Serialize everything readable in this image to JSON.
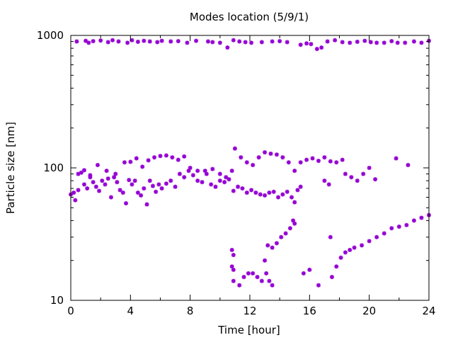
{
  "chart_data": {
    "type": "scatter",
    "title": "Modes location (5/9/1)",
    "xlabel": "Time [hour]",
    "ylabel": "Particle size [nm]",
    "xlim": [
      0,
      24
    ],
    "ylim": [
      10,
      1000
    ],
    "yscale": "log",
    "xticks": [
      0,
      4,
      8,
      12,
      16,
      20,
      24
    ],
    "xtick_labels": [
      "0",
      "4",
      "8",
      "12",
      "16",
      "20",
      "24"
    ],
    "yticks": [
      10,
      100,
      1000
    ],
    "ytick_labels": [
      "10",
      "100",
      "1000"
    ],
    "grid": false,
    "legend": "none",
    "marker_color": "#9400d3",
    "series": [
      {
        "values": [
          [
            0.4,
            900
          ],
          [
            1.0,
            910
          ],
          [
            1.2,
            880
          ],
          [
            1.5,
            905
          ],
          [
            2.0,
            915
          ],
          [
            2.5,
            890
          ],
          [
            2.8,
            920
          ],
          [
            3.2,
            900
          ],
          [
            3.8,
            880
          ],
          [
            4.1,
            920
          ],
          [
            4.5,
            895
          ],
          [
            4.9,
            910
          ],
          [
            5.3,
            900
          ],
          [
            5.8,
            890
          ],
          [
            6.1,
            910
          ],
          [
            6.7,
            900
          ],
          [
            7.2,
            905
          ],
          [
            7.8,
            880
          ],
          [
            8.4,
            910
          ],
          [
            9.2,
            900
          ],
          [
            9.5,
            890
          ],
          [
            10.0,
            880
          ],
          [
            10.5,
            810
          ],
          [
            10.9,
            920
          ],
          [
            11.3,
            900
          ],
          [
            11.7,
            890
          ],
          [
            12.1,
            880
          ],
          [
            12.8,
            890
          ],
          [
            13.5,
            900
          ],
          [
            14.0,
            905
          ],
          [
            14.5,
            890
          ],
          [
            15.4,
            850
          ],
          [
            15.8,
            870
          ],
          [
            16.1,
            860
          ],
          [
            16.5,
            790
          ],
          [
            16.8,
            810
          ],
          [
            17.2,
            900
          ],
          [
            17.7,
            920
          ],
          [
            18.2,
            890
          ],
          [
            18.7,
            880
          ],
          [
            19.2,
            895
          ],
          [
            19.7,
            910
          ],
          [
            20.1,
            890
          ],
          [
            20.5,
            880
          ],
          [
            21.0,
            880
          ],
          [
            21.5,
            905
          ],
          [
            21.9,
            880
          ],
          [
            22.4,
            880
          ],
          [
            23.0,
            900
          ],
          [
            23.5,
            880
          ],
          [
            24.0,
            910
          ],
          [
            0.0,
            63
          ],
          [
            0.2,
            65
          ],
          [
            0.3,
            57
          ],
          [
            0.5,
            68
          ],
          [
            0.7,
            92
          ],
          [
            0.9,
            75
          ],
          [
            1.1,
            70
          ],
          [
            1.3,
            85
          ],
          [
            1.5,
            78
          ],
          [
            1.7,
            72
          ],
          [
            1.9,
            67
          ],
          [
            2.1,
            80
          ],
          [
            2.3,
            75
          ],
          [
            2.5,
            83
          ],
          [
            2.7,
            60
          ],
          [
            2.9,
            85
          ],
          [
            3.1,
            78
          ],
          [
            3.3,
            68
          ],
          [
            3.5,
            65
          ],
          [
            3.7,
            54
          ],
          [
            3.9,
            81
          ],
          [
            4.1,
            75
          ],
          [
            4.3,
            80
          ],
          [
            4.5,
            65
          ],
          [
            4.7,
            62
          ],
          [
            4.9,
            70
          ],
          [
            5.1,
            53
          ],
          [
            5.3,
            80
          ],
          [
            5.5,
            73
          ],
          [
            5.7,
            66
          ],
          [
            5.9,
            75
          ],
          [
            6.1,
            70
          ],
          [
            6.4,
            76
          ],
          [
            6.7,
            80
          ],
          [
            7.0,
            72
          ],
          [
            7.3,
            90
          ],
          [
            7.6,
            85
          ],
          [
            7.9,
            95
          ],
          [
            8.2,
            88
          ],
          [
            8.5,
            80
          ],
          [
            8.8,
            78
          ],
          [
            9.1,
            90
          ],
          [
            9.4,
            75
          ],
          [
            9.7,
            72
          ],
          [
            10.0,
            80
          ],
          [
            10.3,
            78
          ],
          [
            10.6,
            82
          ],
          [
            10.9,
            67
          ],
          [
            11.2,
            72
          ],
          [
            11.5,
            70
          ],
          [
            11.8,
            65
          ],
          [
            12.1,
            68
          ],
          [
            12.4,
            65
          ],
          [
            12.7,
            63
          ],
          [
            13.0,
            62
          ],
          [
            13.3,
            65
          ],
          [
            13.6,
            66
          ],
          [
            13.9,
            60
          ],
          [
            14.2,
            63
          ],
          [
            14.5,
            66
          ],
          [
            14.8,
            60
          ],
          [
            15.0,
            55
          ],
          [
            15.2,
            68
          ],
          [
            15.4,
            72
          ],
          [
            0.5,
            90
          ],
          [
            0.9,
            96
          ],
          [
            1.3,
            88
          ],
          [
            1.8,
            105
          ],
          [
            2.4,
            95
          ],
          [
            3.0,
            90
          ],
          [
            3.6,
            110
          ],
          [
            4.0,
            111
          ],
          [
            4.4,
            118
          ],
          [
            4.8,
            102
          ],
          [
            5.2,
            114
          ],
          [
            5.6,
            120
          ],
          [
            6.0,
            123
          ],
          [
            6.4,
            124
          ],
          [
            6.8,
            120
          ],
          [
            7.2,
            115
          ],
          [
            7.6,
            122
          ],
          [
            8.0,
            100
          ],
          [
            8.5,
            95
          ],
          [
            9.0,
            95
          ],
          [
            9.5,
            98
          ],
          [
            10.0,
            90
          ],
          [
            10.4,
            85
          ],
          [
            10.8,
            95
          ],
          [
            11.0,
            140
          ],
          [
            11.4,
            120
          ],
          [
            11.8,
            110
          ],
          [
            12.2,
            105
          ],
          [
            12.6,
            120
          ],
          [
            13.0,
            131
          ],
          [
            13.4,
            128
          ],
          [
            13.8,
            126
          ],
          [
            14.2,
            120
          ],
          [
            14.6,
            110
          ],
          [
            15.0,
            95
          ],
          [
            15.4,
            110
          ],
          [
            15.8,
            115
          ],
          [
            16.2,
            118
          ],
          [
            16.6,
            113
          ],
          [
            17.0,
            120
          ],
          [
            17.4,
            112
          ],
          [
            17.8,
            110
          ],
          [
            18.2,
            115
          ],
          [
            18.4,
            90
          ],
          [
            18.8,
            85
          ],
          [
            19.2,
            80
          ],
          [
            19.6,
            90
          ],
          [
            20.0,
            100
          ],
          [
            20.4,
            82
          ],
          [
            17.0,
            80
          ],
          [
            17.3,
            75
          ],
          [
            21.8,
            118
          ],
          [
            22.6,
            105
          ],
          [
            10.8,
            24
          ],
          [
            10.9,
            22
          ],
          [
            10.8,
            18
          ],
          [
            10.9,
            17
          ],
          [
            10.9,
            14
          ],
          [
            11.3,
            13
          ],
          [
            11.6,
            15
          ],
          [
            11.9,
            16
          ],
          [
            12.2,
            16
          ],
          [
            12.5,
            15
          ],
          [
            12.8,
            14
          ],
          [
            13.1,
            16
          ],
          [
            13.3,
            14
          ],
          [
            13.5,
            13
          ],
          [
            13.0,
            20
          ],
          [
            13.2,
            26
          ],
          [
            13.5,
            25
          ],
          [
            13.8,
            27
          ],
          [
            14.1,
            30
          ],
          [
            14.4,
            32
          ],
          [
            14.7,
            35
          ],
          [
            14.9,
            40
          ],
          [
            15.0,
            38
          ],
          [
            15.6,
            16
          ],
          [
            16.0,
            17
          ],
          [
            16.6,
            13
          ],
          [
            17.4,
            30
          ],
          [
            17.5,
            15
          ],
          [
            17.8,
            18
          ],
          [
            18.1,
            21
          ],
          [
            18.4,
            23
          ],
          [
            18.7,
            24
          ],
          [
            19.0,
            25
          ],
          [
            19.5,
            26
          ],
          [
            20.0,
            28
          ],
          [
            20.5,
            30
          ],
          [
            21.0,
            32
          ],
          [
            21.5,
            35
          ],
          [
            22.0,
            36
          ],
          [
            22.5,
            37
          ],
          [
            23.0,
            40
          ],
          [
            23.5,
            42
          ],
          [
            24.0,
            44
          ]
        ]
      }
    ]
  }
}
